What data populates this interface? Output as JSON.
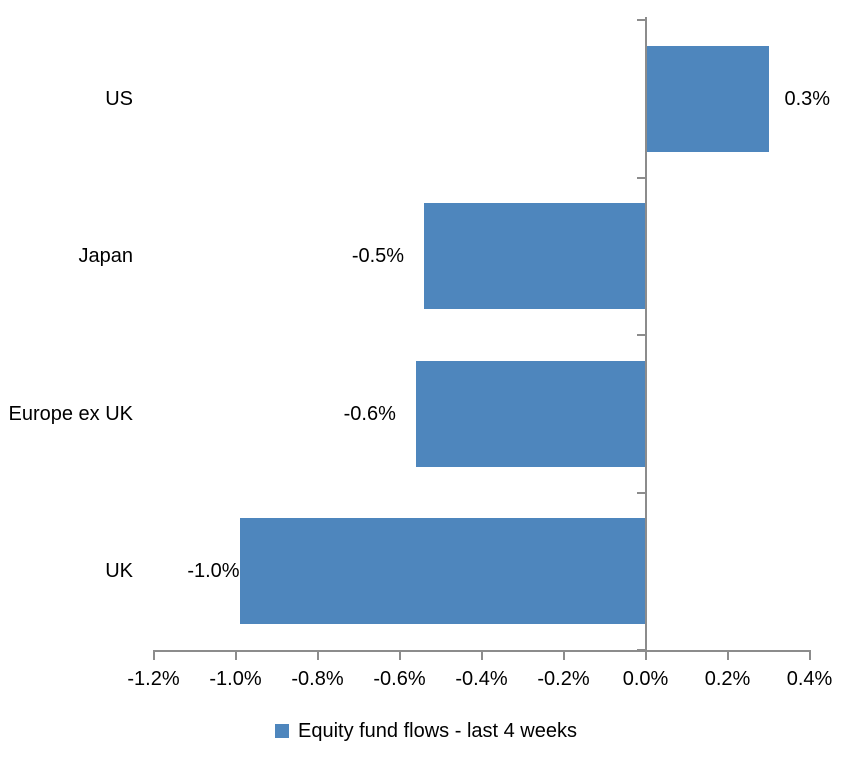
{
  "chart_data": {
    "type": "bar",
    "orientation": "horizontal",
    "title": "",
    "categories": [
      "US",
      "Japan",
      "Europe ex UK",
      "UK"
    ],
    "values": [
      0.3,
      -0.5,
      -0.6,
      -1.0
    ],
    "values_plotted": [
      0.3,
      -0.54,
      -0.56,
      -0.99
    ],
    "data_labels": [
      "0.3%",
      "-0.5%",
      "-0.6%",
      "-1.0%"
    ],
    "unit": "%",
    "legend": [
      "Equity fund flows - last 4 weeks"
    ],
    "legend_position": "bottom",
    "x_axis": {
      "min": -1.2,
      "max": 0.4,
      "tick_interval": 0.2,
      "tick_labels": [
        "-1.2%",
        "-1.0%",
        "-0.8%",
        "-0.6%",
        "-0.4%",
        "-0.2%",
        "0.0%",
        "0.2%",
        "0.4%"
      ]
    },
    "grid": false,
    "colors": {
      "bar": "#4E86BD",
      "axis": "#8C8C8C",
      "text": "#000000",
      "background": "#FFFFFF"
    }
  }
}
